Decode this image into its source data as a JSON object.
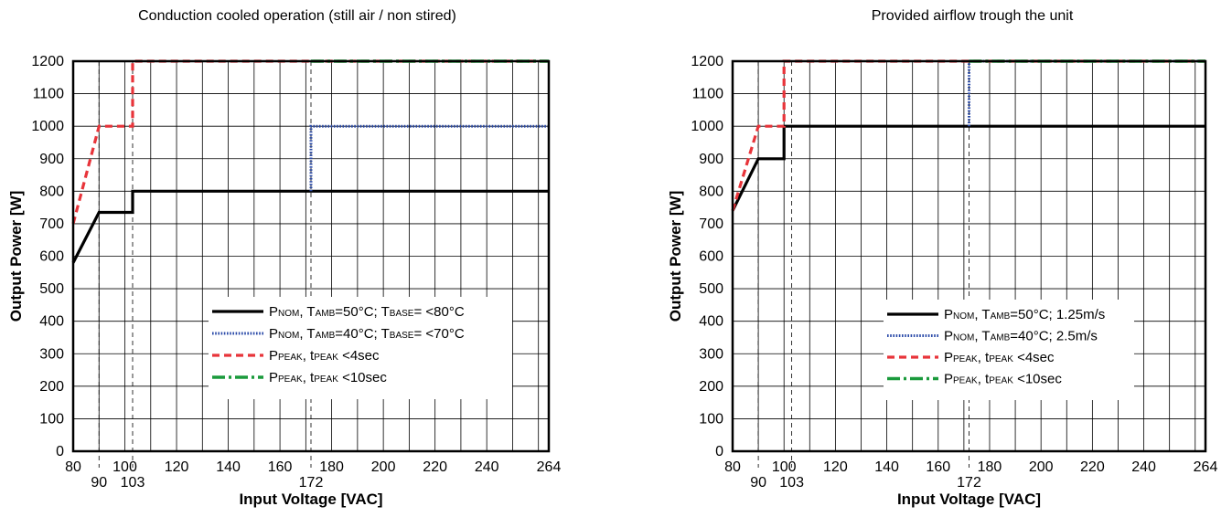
{
  "chart_data": [
    {
      "type": "line",
      "title": "Conduction cooled operation (still air / non stired)",
      "xlabel": "Input Voltage [VAC]",
      "ylabel": "Output Power [W]",
      "xlim": [
        80,
        264
      ],
      "ylim": [
        0,
        1200
      ],
      "x_ticks": [
        "80",
        "100",
        "120",
        "140",
        "160",
        "180",
        "200",
        "220",
        "240",
        "264"
      ],
      "x_ticks_low": [
        "90",
        "103",
        "172"
      ],
      "y_ticks": [
        "0",
        "100",
        "200",
        "300",
        "400",
        "500",
        "600",
        "700",
        "800",
        "900",
        "1000",
        "1100",
        "1200"
      ],
      "grid": true,
      "legend_position": "lower-right",
      "series": [
        {
          "name": "PNOM, TAMB=50°C; TBASE= <80°C",
          "legend": [
            [
              "P",
              "NOM"
            ],
            [
              ", T",
              ""
            ],
            [
              "",
              "AMB"
            ],
            [
              "=50°C; T",
              ""
            ],
            [
              "",
              "BASE"
            ],
            [
              "= <80°C",
              ""
            ]
          ],
          "style": "solid",
          "color": "#000000",
          "x": [
            80,
            90,
            102,
            103,
            103,
            264
          ],
          "y": [
            580,
            735,
            735,
            735,
            800,
            800
          ]
        },
        {
          "name": "PNOM, TAMB=40°C; TBASE= <70°C",
          "legend": [
            [
              "P",
              "NOM"
            ],
            [
              ", T",
              ""
            ],
            [
              "",
              "AMB"
            ],
            [
              "=40°C; T",
              ""
            ],
            [
              "",
              "BASE"
            ],
            [
              "= <70°C",
              ""
            ]
          ],
          "style": "dotted",
          "color": "#2a4aa8",
          "x": [
            172,
            172,
            264
          ],
          "y": [
            800,
            1000,
            1000
          ]
        },
        {
          "name": "PPEAK, tPEAK <4sec",
          "legend": [
            [
              "P",
              "PEAK"
            ],
            [
              ", t",
              ""
            ],
            [
              "",
              "PEAK"
            ],
            [
              " <4sec",
              ""
            ]
          ],
          "style": "dashed",
          "color": "#e8343a",
          "x": [
            80,
            90,
            103,
            103,
            264
          ],
          "y": [
            700,
            1000,
            1000,
            1200,
            1200
          ]
        },
        {
          "name": "PPEAK, tPEAK <10sec",
          "legend": [
            [
              "P",
              "PEAK"
            ],
            [
              ", t",
              ""
            ],
            [
              "",
              "PEAK"
            ],
            [
              " <10sec",
              ""
            ]
          ],
          "style": "dashdot",
          "color": "#1a9a3c",
          "x": [
            172,
            264
          ],
          "y": [
            1200,
            1200
          ]
        }
      ]
    },
    {
      "type": "line",
      "title": "Provided airflow trough the unit",
      "xlabel": "Input Voltage [VAC]",
      "ylabel": "Output Power [W]",
      "xlim": [
        80,
        264
      ],
      "ylim": [
        0,
        1200
      ],
      "x_ticks": [
        "80",
        "100",
        "120",
        "140",
        "160",
        "180",
        "200",
        "220",
        "240",
        "264"
      ],
      "x_ticks_low": [
        "90",
        "103",
        "172"
      ],
      "y_ticks": [
        "0",
        "100",
        "200",
        "300",
        "400",
        "500",
        "600",
        "700",
        "800",
        "900",
        "1000",
        "1100",
        "1200"
      ],
      "grid": true,
      "legend_position": "lower-right",
      "series": [
        {
          "name": "PNOM, TAMB=50°C; 1.25m/s",
          "legend": [
            [
              "P",
              "NOM"
            ],
            [
              ", T",
              ""
            ],
            [
              "",
              "AMB"
            ],
            [
              "=50°C; 1.25m/s",
              ""
            ]
          ],
          "style": "solid",
          "color": "#000000",
          "x": [
            80,
            90,
            100,
            100,
            264
          ],
          "y": [
            740,
            900,
            900,
            1000,
            1000
          ]
        },
        {
          "name": "PNOM, TAMB=40°C; 2.5m/s",
          "legend": [
            [
              "P",
              "NOM"
            ],
            [
              ", T",
              ""
            ],
            [
              "",
              "AMB"
            ],
            [
              "=40°C; 2.5m/s",
              ""
            ]
          ],
          "style": "dotted",
          "color": "#2a4aa8",
          "x": [
            172,
            172,
            264
          ],
          "y": [
            1000,
            1200,
            1200
          ]
        },
        {
          "name": "PPEAK, tPEAK <4sec",
          "legend": [
            [
              "P",
              "PEAK"
            ],
            [
              ", t",
              ""
            ],
            [
              "",
              "PEAK"
            ],
            [
              " <4sec",
              ""
            ]
          ],
          "style": "dashed",
          "color": "#e8343a",
          "x": [
            80,
            90,
            100,
            100,
            264
          ],
          "y": [
            740,
            1000,
            1000,
            1200,
            1200
          ]
        },
        {
          "name": "PPEAK, tPEAK <10sec",
          "legend": [
            [
              "P",
              "PEAK"
            ],
            [
              ", t",
              ""
            ],
            [
              "",
              "PEAK"
            ],
            [
              " <10sec",
              ""
            ]
          ],
          "style": "dashdot",
          "color": "#1a9a3c",
          "x": [
            172,
            264
          ],
          "y": [
            1200,
            1200
          ]
        }
      ]
    }
  ]
}
